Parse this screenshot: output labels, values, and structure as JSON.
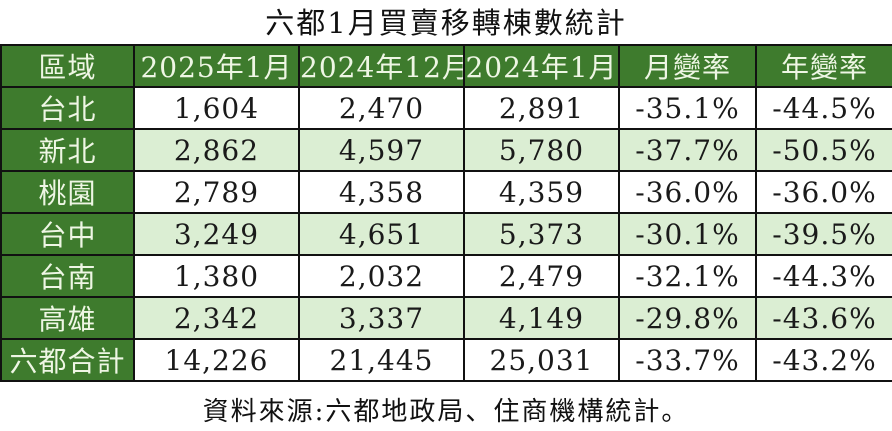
{
  "title": "六都1月買賣移轉棟數統計",
  "footer": "資料來源:六都地政局、住商機構統計。",
  "colors": {
    "header_green": "#3e7b2d",
    "row_light_green": "#dbeed3",
    "row_white": "#ffffff",
    "header_text": "#eef6e4",
    "body_text": "#1a1a1a",
    "border": "#111111"
  },
  "table": {
    "columns": [
      "區域",
      "2025年1月",
      "2024年12月",
      "2024年1月",
      "月變率",
      "年變率"
    ],
    "rows": [
      {
        "region": "台北",
        "cells": [
          "1,604",
          "2,470",
          "2,891",
          "-35.1%",
          "-44.5%"
        ]
      },
      {
        "region": "新北",
        "cells": [
          "2,862",
          "4,597",
          "5,780",
          "-37.7%",
          "-50.5%"
        ]
      },
      {
        "region": "桃園",
        "cells": [
          "2,789",
          "4,358",
          "4,359",
          "-36.0%",
          "-36.0%"
        ]
      },
      {
        "region": "台中",
        "cells": [
          "3,249",
          "4,651",
          "5,373",
          "-30.1%",
          "-39.5%"
        ]
      },
      {
        "region": "台南",
        "cells": [
          "1,380",
          "2,032",
          "2,479",
          "-32.1%",
          "-44.3%"
        ]
      },
      {
        "region": "高雄",
        "cells": [
          "2,342",
          "3,337",
          "4,149",
          "-29.8%",
          "-43.6%"
        ]
      },
      {
        "region": "六都合計",
        "cells": [
          "14,226",
          "21,445",
          "25,031",
          "-33.7%",
          "-43.2%"
        ]
      }
    ]
  },
  "chart_data": {
    "type": "table",
    "title": "六都1月買賣移轉棟數統計",
    "columns": [
      "區域",
      "2025年1月",
      "2024年12月",
      "2024年1月",
      "月變率",
      "年變率"
    ],
    "rows": [
      [
        "台北",
        1604,
        2470,
        2891,
        "-35.1%",
        "-44.5%"
      ],
      [
        "新北",
        2862,
        4597,
        5780,
        "-37.7%",
        "-50.5%"
      ],
      [
        "桃園",
        2789,
        4358,
        4359,
        "-36.0%",
        "-36.0%"
      ],
      [
        "台中",
        3249,
        4651,
        5373,
        "-30.1%",
        "-39.5%"
      ],
      [
        "台南",
        1380,
        2032,
        2479,
        "-32.1%",
        "-44.3%"
      ],
      [
        "高雄",
        2342,
        3337,
        4149,
        "-29.8%",
        "-43.6%"
      ],
      [
        "六都合計",
        14226,
        21445,
        25031,
        "-33.7%",
        "-43.2%"
      ]
    ],
    "source_note": "資料來源:六都地政局、住商機構統計。"
  }
}
